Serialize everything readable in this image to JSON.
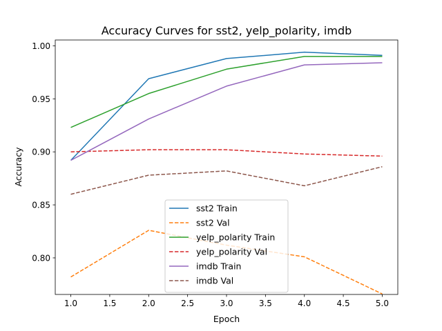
{
  "chart_data": {
    "type": "line",
    "title": "Accuracy Curves for sst2, yelp_polarity, imdb",
    "xlabel": "Epoch",
    "ylabel": "Accuracy",
    "xlim": [
      0.8,
      5.2
    ],
    "ylim": [
      0.7655,
      1.0055
    ],
    "x_ticks": [
      "1.0",
      "1.5",
      "2.0",
      "2.5",
      "3.0",
      "3.5",
      "4.0",
      "4.5",
      "5.0"
    ],
    "y_ticks": [
      "0.80",
      "0.85",
      "0.90",
      "0.95",
      "1.00"
    ],
    "grid": false,
    "legend_position": "lower center",
    "x": [
      1,
      2,
      3,
      4,
      5
    ],
    "series": [
      {
        "name": "sst2 Train",
        "color": "#1f77b4",
        "dash": "solid",
        "values": [
          0.892,
          0.969,
          0.988,
          0.994,
          0.991
        ]
      },
      {
        "name": "sst2 Val",
        "color": "#ff7f0e",
        "dash": "dashed",
        "values": [
          0.782,
          0.826,
          0.812,
          0.801,
          0.766
        ]
      },
      {
        "name": "yelp_polarity Train",
        "color": "#2ca02c",
        "dash": "solid",
        "values": [
          0.923,
          0.955,
          0.978,
          0.99,
          0.99
        ]
      },
      {
        "name": "yelp_polarity Val",
        "color": "#d62728",
        "dash": "dashed",
        "values": [
          0.9,
          0.902,
          0.902,
          0.898,
          0.896
        ]
      },
      {
        "name": "imdb Train",
        "color": "#9467bd",
        "dash": "solid",
        "values": [
          0.892,
          0.931,
          0.962,
          0.982,
          0.984
        ]
      },
      {
        "name": "imdb Val",
        "color": "#8c564b",
        "dash": "dashed",
        "values": [
          0.86,
          0.878,
          0.882,
          0.868,
          0.886
        ]
      }
    ]
  }
}
